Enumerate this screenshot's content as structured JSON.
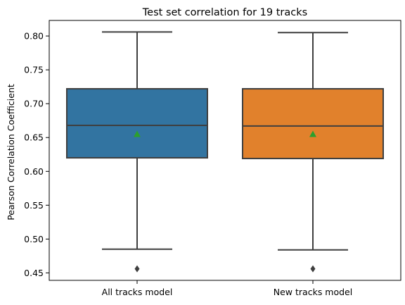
{
  "chart_data": {
    "type": "box",
    "title": "Test set correlation for 19 tracks",
    "xlabel": "",
    "ylabel": "Pearson Correlation Coefficient",
    "ylim": [
      0.439,
      0.823
    ],
    "yticks": [
      0.45,
      0.5,
      0.55,
      0.6,
      0.65,
      0.7,
      0.75,
      0.8
    ],
    "ytick_labels": [
      "0.45",
      "0.50",
      "0.55",
      "0.60",
      "0.65",
      "0.70",
      "0.75",
      "0.80"
    ],
    "categories": [
      "All tracks model",
      "New tracks model"
    ],
    "boxes": [
      {
        "category": "All tracks model",
        "color": "#3274a1",
        "whisker_low": 0.485,
        "q1": 0.62,
        "median": 0.668,
        "q3": 0.722,
        "whisker_high": 0.806,
        "mean": 0.655,
        "outliers": [
          0.456
        ]
      },
      {
        "category": "New tracks model",
        "color": "#e1812c",
        "whisker_low": 0.484,
        "q1": 0.619,
        "median": 0.667,
        "q3": 0.722,
        "whisker_high": 0.805,
        "mean": 0.655,
        "outliers": [
          0.456
        ]
      }
    ],
    "mean_marker_color": "#2ca02c",
    "line_color": "#3f3f3f",
    "grid": false,
    "legend": "none"
  }
}
